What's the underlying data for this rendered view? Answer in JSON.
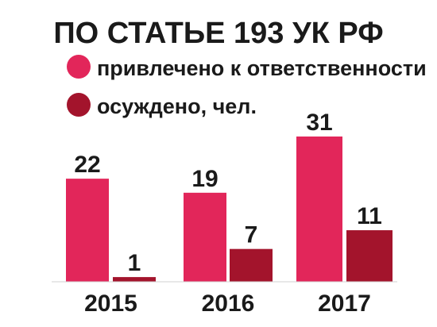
{
  "chart_data": {
    "type": "bar",
    "title": "ПО СТАТЬЕ 193 УК РФ",
    "categories": [
      "2015",
      "2016",
      "2017"
    ],
    "series": [
      {
        "name": "привлечено к ответственности",
        "values": [
          22,
          19,
          31
        ],
        "color": "#e2265a"
      },
      {
        "name": "осуждено, чел.",
        "values": [
          1,
          7,
          11
        ],
        "color": "#a3142c"
      }
    ],
    "ylim": [
      0,
      31
    ],
    "grid": false,
    "legend_position": "top-left",
    "data_labels": true
  }
}
